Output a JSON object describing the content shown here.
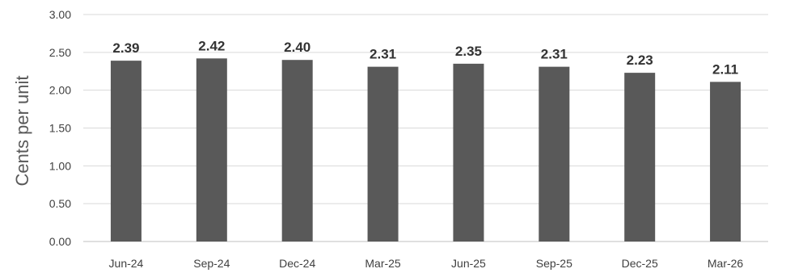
{
  "chart_data": {
    "type": "bar",
    "categories": [
      "Jun-24",
      "Sep-24",
      "Dec-24",
      "Mar-25",
      "Jun-25",
      "Sep-25",
      "Dec-25",
      "Mar-26"
    ],
    "values": [
      2.39,
      2.42,
      2.4,
      2.31,
      2.35,
      2.31,
      2.23,
      2.11
    ],
    "data_labels": [
      "2.39",
      "2.42",
      "2.40",
      "2.31",
      "2.35",
      "2.31",
      "2.23",
      "2.11"
    ],
    "ylabel": "Cents per unit",
    "ylim": [
      0,
      3
    ],
    "y_ticks": [
      0,
      0.5,
      1,
      1.5,
      2,
      2.5,
      3
    ],
    "y_tick_labels": [
      "0.00",
      "0.50",
      "1.00",
      "1.50",
      "2.00",
      "2.50",
      "3.00"
    ],
    "grid": true,
    "legend": "none",
    "colors": {
      "bar": "#595959",
      "grid": "#d9d9d9",
      "axis": "#bfbfbf"
    }
  }
}
